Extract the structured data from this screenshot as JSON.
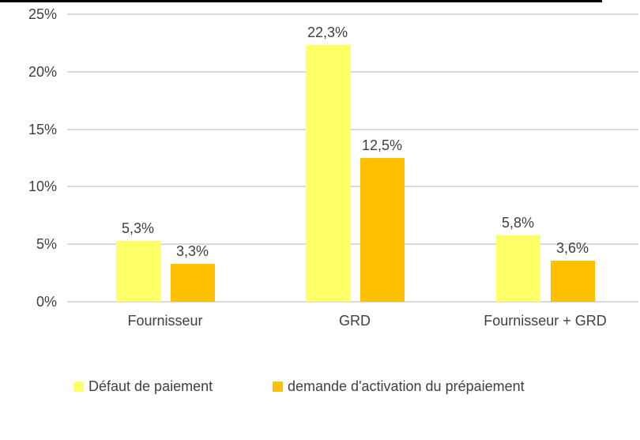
{
  "chart_data": {
    "type": "bar",
    "title": "",
    "xlabel": "",
    "ylabel": "",
    "categories": [
      "Fournisseur",
      "GRD",
      "Fournisseur + GRD"
    ],
    "series": [
      {
        "name": "Défaut de paiement",
        "color": "#FFFF66",
        "values": [
          5.3,
          22.3,
          5.8
        ],
        "value_labels": [
          "5,3%",
          "22,3%",
          "5,8%"
        ]
      },
      {
        "name": "demande d'activation du prépaiement",
        "color": "#FFC000",
        "values": [
          3.3,
          12.5,
          3.6
        ],
        "value_labels": [
          "3,3%",
          "12,5%",
          "3,6%"
        ]
      }
    ],
    "ylim": [
      0,
      25
    ],
    "y_ticks": [
      {
        "value": 0,
        "label": "0%"
      },
      {
        "value": 5,
        "label": "5%"
      },
      {
        "value": 10,
        "label": "10%"
      },
      {
        "value": 15,
        "label": "15%"
      },
      {
        "value": 20,
        "label": "20%"
      },
      {
        "value": 25,
        "label": "25%"
      }
    ],
    "grid": true,
    "legend_position": "bottom"
  },
  "colors": {
    "gridline": "#D9D9D9",
    "text": "#404040",
    "top_border": "#000000",
    "background": "#FFFFFF"
  }
}
